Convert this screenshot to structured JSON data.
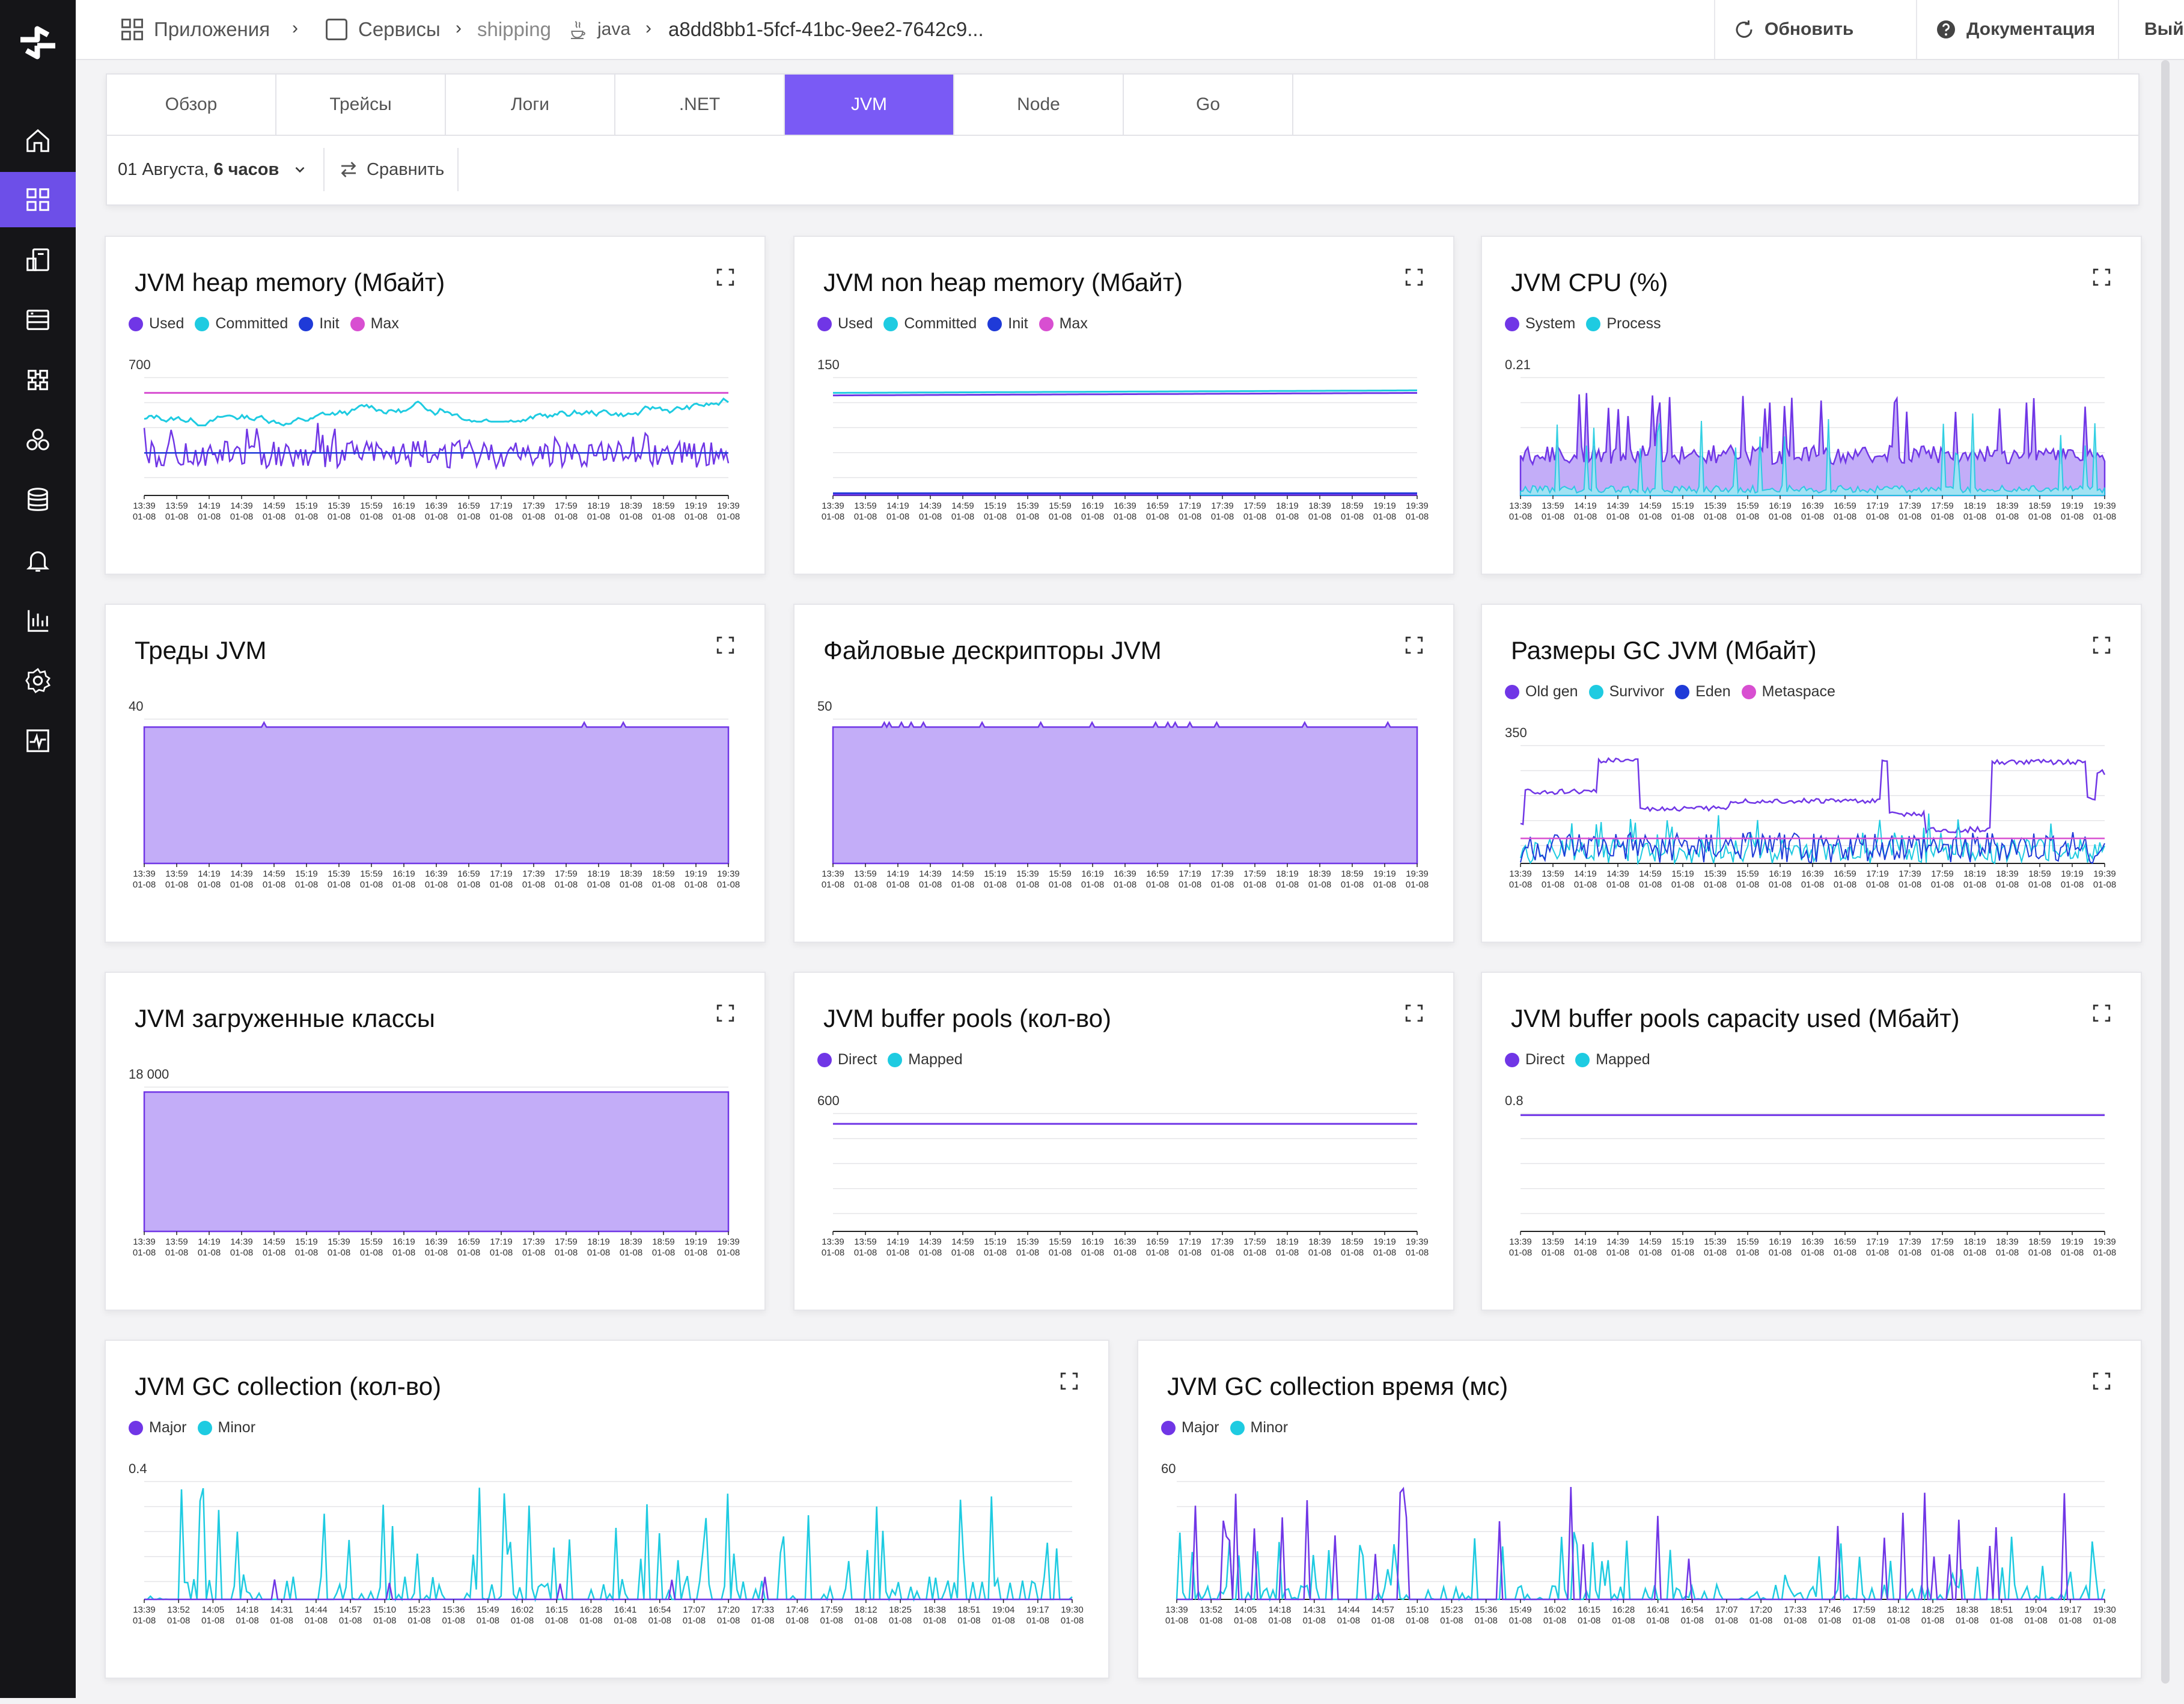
{
  "colors": {
    "accent": "#7a5af5",
    "purple": "#7036e6",
    "cyan": "#1ecbe1",
    "blue": "#1f3ad8",
    "magenta": "#d84fd1",
    "area_fill": "#c3adf8"
  },
  "sidebar": {
    "items": [
      {
        "icon": "home-icon"
      },
      {
        "icon": "apps-grid-icon",
        "active": true
      },
      {
        "icon": "services-icon"
      },
      {
        "icon": "logs-icon"
      },
      {
        "icon": "modules-icon"
      },
      {
        "icon": "clusters-icon"
      },
      {
        "icon": "database-icon"
      },
      {
        "icon": "bell-icon"
      },
      {
        "icon": "bar-chart-icon"
      },
      {
        "icon": "gear-icon"
      },
      {
        "icon": "activity-icon"
      }
    ]
  },
  "header": {
    "breadcrumbs": [
      "Приложения",
      "Сервисы",
      "shipping",
      "java",
      "a8dd8bb1-5fcf-41bc-9ee2-7642c9..."
    ],
    "refresh_label": "Обновить",
    "docs_label": "Документация",
    "logout_label": "Выйти"
  },
  "tabs": [
    {
      "label": "Обзор"
    },
    {
      "label": "Трейсы"
    },
    {
      "label": "Логи"
    },
    {
      "label": ".NET"
    },
    {
      "label": "JVM",
      "active": true
    },
    {
      "label": "Node"
    },
    {
      "label": "Go"
    }
  ],
  "filters": {
    "date_prefix": "01 Августа,",
    "date_range": "6 часов",
    "compare_label": "Сравнить"
  },
  "charts": {
    "heap": {
      "title": "JVM heap memory (Мбайт)",
      "legend": [
        "Used",
        "Committed",
        "Init",
        "Max"
      ],
      "ymax": "700"
    },
    "nonheap": {
      "title": "JVM non heap memory (Мбайт)",
      "legend": [
        "Used",
        "Committed",
        "Init",
        "Max"
      ],
      "ymax": "150"
    },
    "cpu": {
      "title": "JVM CPU (%)",
      "legend": [
        "System",
        "Process"
      ],
      "ymax": "0.21"
    },
    "threads": {
      "title": "Треды JVM",
      "ymax": "40"
    },
    "fd": {
      "title": "Файловые дескрипторы JVM",
      "ymax": "50"
    },
    "gcsize": {
      "title": "Размеры GC JVM (Мбайт)",
      "legend": [
        "Old gen",
        "Survivor",
        "Eden",
        "Metaspace"
      ],
      "ymax": "350"
    },
    "classes": {
      "title": "JVM загруженные классы",
      "ymax": "18 000"
    },
    "bufcount": {
      "title": "JVM buffer pools (кол-во)",
      "legend": [
        "Direct",
        "Mapped"
      ],
      "ymax": "600"
    },
    "bufcap": {
      "title": "JVM buffer pools capacity used (Мбайт)",
      "legend": [
        "Direct",
        "Mapped"
      ],
      "ymax": "0.8"
    },
    "gccount": {
      "title": "JVM GC collection (кол-во)",
      "legend": [
        "Major",
        "Minor"
      ],
      "ymax": "0.4"
    },
    "gctime": {
      "title": "JVM GC collection время (мс)",
      "legend": [
        "Major",
        "Minor"
      ],
      "ymax": "60"
    }
  },
  "x_ticks_20min": [
    "13:39",
    "13:59",
    "14:19",
    "14:39",
    "14:59",
    "15:19",
    "15:39",
    "15:59",
    "16:19",
    "16:39",
    "16:59",
    "17:19",
    "17:39",
    "17:59",
    "18:19",
    "18:39",
    "18:59",
    "19:19",
    "19:39"
  ],
  "x_ticks_13min": [
    "13:39",
    "13:52",
    "14:05",
    "14:18",
    "14:31",
    "14:44",
    "14:57",
    "15:10",
    "15:23",
    "15:36",
    "15:49",
    "16:02",
    "16:15",
    "16:28",
    "16:41",
    "16:54",
    "17:07",
    "17:20",
    "17:33",
    "17:46",
    "17:59",
    "18:12",
    "18:25",
    "18:38",
    "18:51",
    "19:04",
    "19:17",
    "19:30"
  ],
  "x_date": "01-08",
  "chart_data": [
    {
      "type": "line",
      "id": "heap",
      "series": [
        {
          "name": "Max",
          "values": [
            700,
            700
          ]
        },
        {
          "name": "Committed",
          "approx_range": [
            470,
            630
          ]
        },
        {
          "name": "Used",
          "approx_range": [
            190,
            520
          ]
        },
        {
          "name": "Init",
          "values": [
            300,
            300
          ]
        }
      ]
    },
    {
      "type": "line",
      "id": "nonheap",
      "series": [
        {
          "name": "Committed",
          "values": [
            130,
            135
          ]
        },
        {
          "name": "Used",
          "values": [
            125,
            132
          ]
        },
        {
          "name": "Init",
          "values": [
            2,
            2
          ]
        },
        {
          "name": "Max",
          "values": [
            0,
            0
          ]
        }
      ]
    },
    {
      "type": "area",
      "id": "cpu",
      "series": [
        {
          "name": "System",
          "approx_range": [
            0.04,
            0.18
          ]
        },
        {
          "name": "Process",
          "approx_range": [
            0,
            0.15
          ]
        }
      ]
    },
    {
      "type": "area",
      "id": "threads",
      "series": [
        {
          "name": "",
          "approx_range": [
            37,
            39
          ]
        }
      ]
    },
    {
      "type": "area",
      "id": "fd",
      "series": [
        {
          "name": "",
          "approx_range": [
            47,
            49
          ]
        }
      ]
    },
    {
      "type": "line",
      "id": "gcsize",
      "series": [
        {
          "name": "Old gen",
          "approx_range": [
            20,
            300
          ]
        },
        {
          "name": "Survivor",
          "approx_range": [
            0,
            100
          ]
        },
        {
          "name": "Eden",
          "approx_range": [
            0,
            120
          ]
        },
        {
          "name": "Metaspace",
          "values": [
            70,
            70
          ]
        }
      ]
    },
    {
      "type": "area",
      "id": "classes",
      "series": [
        {
          "name": "",
          "values": [
            16500,
            16500
          ]
        }
      ]
    },
    {
      "type": "line",
      "id": "bufcount",
      "series": [
        {
          "name": "Direct",
          "values": [
            520,
            520
          ]
        },
        {
          "name": "Mapped",
          "values": [
            0,
            0
          ]
        }
      ]
    },
    {
      "type": "line",
      "id": "bufcap",
      "series": [
        {
          "name": "Direct",
          "values": [
            0.75,
            0.75
          ]
        },
        {
          "name": "Mapped",
          "values": [
            0,
            0
          ]
        }
      ]
    },
    {
      "type": "line",
      "id": "gccount",
      "series": [
        {
          "name": "Major",
          "approx_range": [
            0,
            0.05
          ]
        },
        {
          "name": "Minor",
          "approx_range": [
            0,
            0.4
          ]
        }
      ]
    },
    {
      "type": "line",
      "id": "gctime",
      "series": [
        {
          "name": "Major",
          "approx_range": [
            0,
            50
          ]
        },
        {
          "name": "Minor",
          "approx_range": [
            0,
            45
          ]
        }
      ]
    }
  ]
}
